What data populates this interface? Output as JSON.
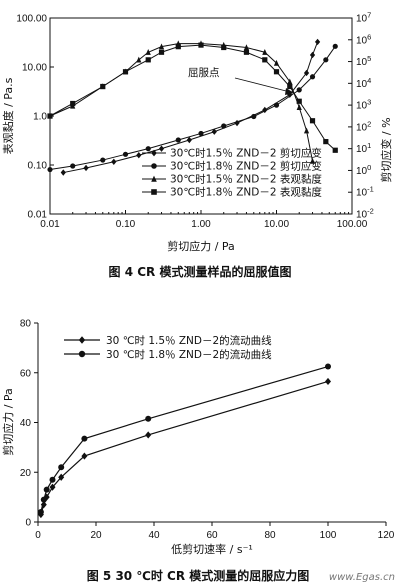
{
  "captions": {
    "fig4": "图 4   CR 模式测量样品的屈服值图",
    "fig5": "图 5   30 ℃时 CR 模式测量的屈服应力图"
  },
  "watermark": "www.Egas.cn",
  "chart_data": [
    {
      "type": "line",
      "xscale": "log",
      "xlabel": "剪切应力 / Pa",
      "ylabel": "表观黏度 / Pa.s",
      "y2label": "剪切应变 / %",
      "xlim": [
        0.01,
        100
      ],
      "ylim": [
        0.01,
        100
      ],
      "y2lim": [
        0.01,
        10000000
      ],
      "x_ticks": [
        "0.01",
        "0.10",
        "1.00",
        "10.00",
        "100.00"
      ],
      "y_ticks": [
        "0.01",
        "0.10",
        "1.0",
        "10.00",
        "100.00"
      ],
      "y2_ticks": [
        "10^-2",
        "10^-1",
        "10^0",
        "10^1",
        "10^2",
        "10^3",
        "10^4",
        "10^5",
        "10^6",
        "10^7"
      ],
      "annotation": "屈服点",
      "legend_position": "lower-center",
      "series": [
        {
          "name": "30℃时1.5％ ZND－2  剪切应变",
          "marker": "diamond",
          "axis": "right",
          "points": [
            [
              0.015,
              0.8
            ],
            [
              0.03,
              1.3
            ],
            [
              0.07,
              2.5
            ],
            [
              0.15,
              5
            ],
            [
              0.3,
              10
            ],
            [
              0.7,
              25
            ],
            [
              1.5,
              60
            ],
            [
              3,
              150
            ],
            [
              7,
              600
            ],
            [
              15,
              3000
            ],
            [
              25,
              30000
            ],
            [
              30,
              200000
            ],
            [
              35,
              800000
            ]
          ]
        },
        {
          "name": "30℃时1.8％ ZND－2  剪切应变",
          "marker": "circle",
          "axis": "right",
          "points": [
            [
              0.01,
              1.1
            ],
            [
              0.02,
              1.6
            ],
            [
              0.05,
              3
            ],
            [
              0.1,
              5.5
            ],
            [
              0.2,
              10
            ],
            [
              0.5,
              25
            ],
            [
              1,
              50
            ],
            [
              2,
              110
            ],
            [
              5,
              300
            ],
            [
              10,
              1000
            ],
            [
              20,
              5000
            ],
            [
              30,
              20000
            ],
            [
              45,
              120000
            ],
            [
              60,
              500000
            ]
          ]
        },
        {
          "name": "30℃时1.5％ ZND－2  表观黏度",
          "marker": "triangle",
          "axis": "left",
          "points": [
            [
              0.01,
              1
            ],
            [
              0.02,
              1.6
            ],
            [
              0.05,
              4
            ],
            [
              0.1,
              8
            ],
            [
              0.15,
              14
            ],
            [
              0.2,
              20
            ],
            [
              0.3,
              26
            ],
            [
              0.5,
              30
            ],
            [
              1,
              30
            ],
            [
              2,
              28
            ],
            [
              4,
              25
            ],
            [
              7,
              20
            ],
            [
              10,
              12
            ],
            [
              15,
              5
            ],
            [
              20,
              1.5
            ],
            [
              25,
              0.5
            ],
            [
              30,
              0.12
            ]
          ]
        },
        {
          "name": "30℃时1.8％ ZND－2  表观黏度",
          "marker": "square",
          "axis": "left",
          "points": [
            [
              0.01,
              1
            ],
            [
              0.02,
              1.8
            ],
            [
              0.05,
              4
            ],
            [
              0.1,
              8
            ],
            [
              0.2,
              14
            ],
            [
              0.3,
              20
            ],
            [
              0.5,
              26
            ],
            [
              1,
              28
            ],
            [
              2,
              25
            ],
            [
              4,
              20
            ],
            [
              7,
              14
            ],
            [
              10,
              8
            ],
            [
              15,
              4
            ],
            [
              20,
              2
            ],
            [
              30,
              0.8
            ],
            [
              45,
              0.3
            ],
            [
              60,
              0.2
            ]
          ]
        }
      ]
    },
    {
      "type": "line",
      "xlabel": "低剪切速率 / s⁻¹",
      "ylabel": "剪切应力 / Pa",
      "xlim": [
        0,
        120
      ],
      "ylim": [
        0,
        80
      ],
      "x_ticks": [
        0,
        20,
        40,
        60,
        80,
        100,
        120
      ],
      "y_ticks": [
        0,
        20,
        40,
        60,
        80
      ],
      "legend_position": "top-left",
      "series": [
        {
          "name": "30 ℃时 1.5％  ZND－2的流动曲线",
          "marker": "diamond",
          "points": [
            [
              1,
              3
            ],
            [
              2,
              7
            ],
            [
              3,
              10
            ],
            [
              5,
              14
            ],
            [
              8,
              18
            ],
            [
              16,
              26.5
            ],
            [
              38,
              35
            ],
            [
              100,
              56.5
            ]
          ]
        },
        {
          "name": "30 ℃时 1.8％  ZND－2的流动曲线",
          "marker": "circle",
          "points": [
            [
              1,
              4
            ],
            [
              2,
              9
            ],
            [
              3,
              13
            ],
            [
              5,
              17
            ],
            [
              8,
              22
            ],
            [
              16,
              33.5
            ],
            [
              38,
              41.5
            ],
            [
              100,
              62.5
            ]
          ]
        }
      ]
    }
  ]
}
